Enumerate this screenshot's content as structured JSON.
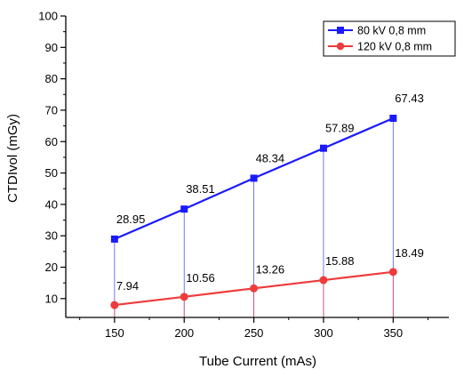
{
  "chart_data": {
    "type": "line",
    "title": "",
    "xlabel": "Tube Current (mAs)",
    "ylabel": "CTDIvol (mGy)",
    "x": [
      150,
      200,
      250,
      300,
      350
    ],
    "xlim": [
      115,
      390
    ],
    "ylim": [
      4,
      100
    ],
    "x_ticks": [
      150,
      200,
      250,
      300,
      350
    ],
    "y_ticks": [
      10,
      20,
      30,
      40,
      50,
      60,
      70,
      80,
      90,
      100
    ],
    "grid": false,
    "legend_position": "top-right",
    "drop_lines": true,
    "series": [
      {
        "name": "80 kV 0,8 mm",
        "color": "#1a1aff",
        "marker": "square",
        "values": [
          28.95,
          38.51,
          48.34,
          57.89,
          67.43
        ],
        "labels": [
          "28.95",
          "38.51",
          "48.34",
          "57.89",
          "67.43"
        ]
      },
      {
        "name": "120 kV 0,8 mm",
        "color": "#ee3b3b",
        "marker": "circle",
        "values": [
          7.94,
          10.56,
          13.26,
          15.88,
          18.49
        ],
        "labels": [
          "7.94",
          "10.56",
          "13.26",
          "15.88",
          "18.49"
        ]
      }
    ]
  }
}
